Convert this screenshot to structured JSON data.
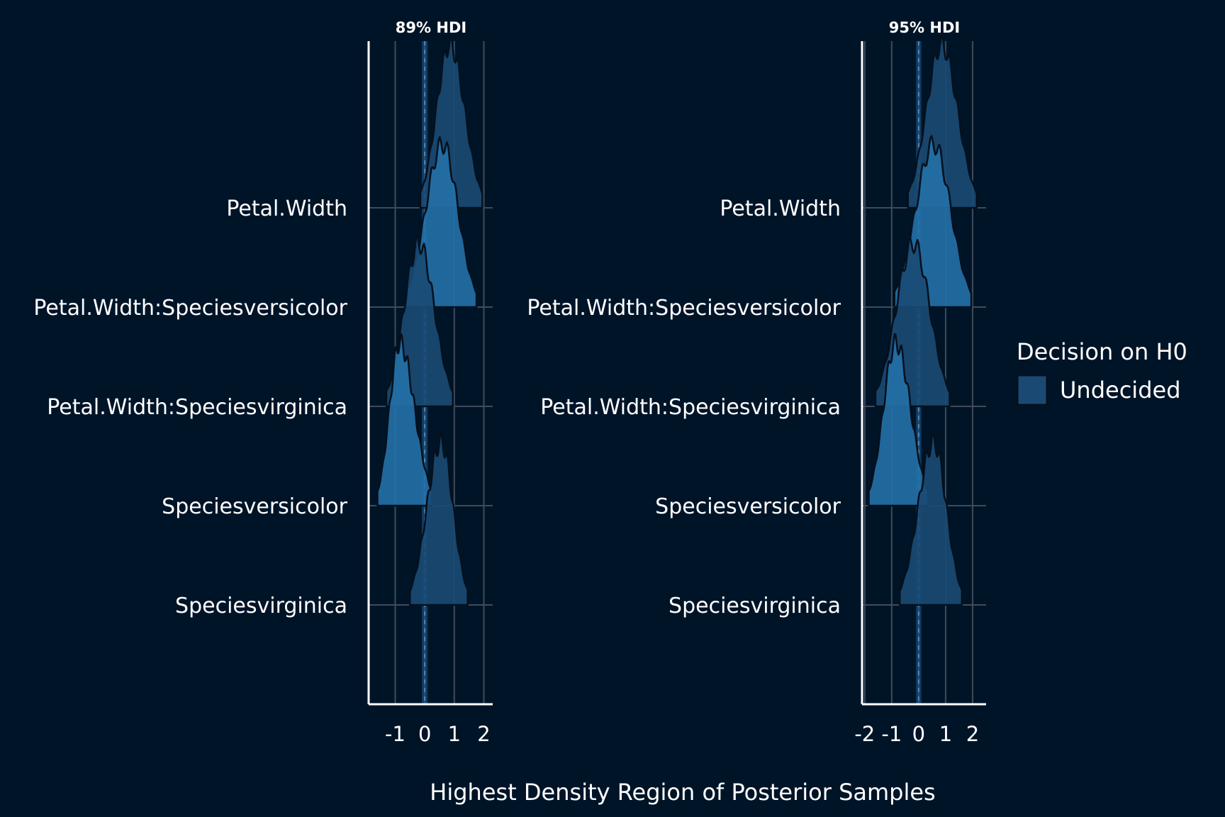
{
  "colors": {
    "background": "#001428",
    "axis_line": "#ffffff",
    "grid": "#3f4b5a",
    "text": "#ffffff",
    "rope_band": "#1e5a8c",
    "rope_line": "#4f86b8",
    "ridge_fill_dark": "#1a4a73",
    "ridge_fill_light": "#2470a8",
    "ridge_stroke": "#05101c"
  },
  "chart_data": [
    {
      "type": "ridgeline",
      "title": "89% HDI",
      "categories": [
        "Petal.Width",
        "Petal.Width:Speciesversicolor",
        "Petal.Width:Speciesvirginica",
        "Speciesversicolor",
        "Speciesvirginica"
      ],
      "xlim": [
        -1.9,
        2.3
      ],
      "xticks": [
        -1,
        0,
        1,
        2
      ],
      "xtick_labels": [
        "-1",
        "0",
        "1",
        "2"
      ],
      "rope": [
        -0.1,
        0.1
      ],
      "grid": true,
      "series": [
        {
          "category": "Petal.Width",
          "hdi": [
            -0.15,
            1.95
          ],
          "mode": 0.85
        },
        {
          "category": "Petal.Width:Speciesversicolor",
          "hdi": [
            -0.65,
            1.75
          ],
          "mode": 0.6
        },
        {
          "category": "Petal.Width:Speciesvirginica",
          "hdi": [
            -1.3,
            0.95
          ],
          "mode": -0.2
        },
        {
          "category": "Speciesversicolor",
          "hdi": [
            -1.6,
            0.25
          ],
          "mode": -0.85
        },
        {
          "category": "Speciesvirginica",
          "hdi": [
            -0.5,
            1.45
          ],
          "mode": 0.55
        }
      ]
    },
    {
      "type": "ridgeline",
      "title": "95% HDI",
      "categories": [
        "Petal.Width",
        "Petal.Width:Speciesversicolor",
        "Petal.Width:Speciesvirginica",
        "Speciesversicolor",
        "Speciesvirginica"
      ],
      "xlim": [
        -2.1,
        2.5
      ],
      "xticks": [
        -2,
        -1,
        0,
        1,
        2
      ],
      "xtick_labels": [
        "-2",
        "-1",
        "0",
        "1",
        "2"
      ],
      "rope": [
        -0.1,
        0.1
      ],
      "grid": true,
      "series": [
        {
          "category": "Petal.Width",
          "hdi": [
            -0.4,
            2.15
          ],
          "mode": 0.85
        },
        {
          "category": "Petal.Width:Speciesversicolor",
          "hdi": [
            -0.9,
            1.95
          ],
          "mode": 0.55
        },
        {
          "category": "Petal.Width:Speciesvirginica",
          "hdi": [
            -1.6,
            1.15
          ],
          "mode": -0.2
        },
        {
          "category": "Speciesversicolor",
          "hdi": [
            -1.85,
            0.35
          ],
          "mode": -0.85
        },
        {
          "category": "Speciesvirginica",
          "hdi": [
            -0.7,
            1.6
          ],
          "mode": 0.55
        }
      ]
    }
  ],
  "xlabel": "Highest Density Region of Posterior Samples",
  "legend": {
    "title": "Decision on H0",
    "items": [
      {
        "label": "Undecided",
        "color": "#1a4a73"
      }
    ],
    "placement": "right"
  }
}
